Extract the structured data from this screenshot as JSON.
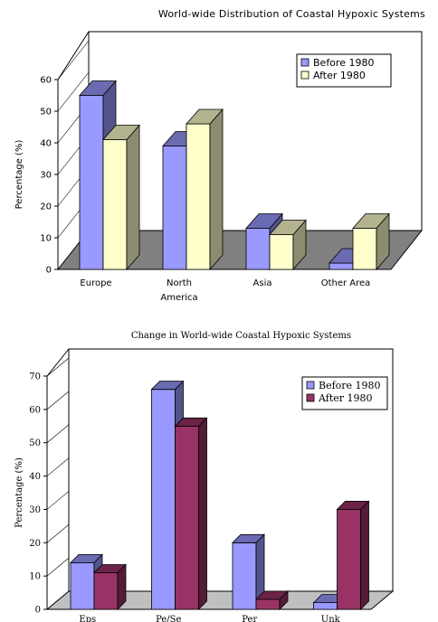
{
  "chart_data": [
    {
      "type": "bar",
      "title": "World-wide Distribution of Coastal Hypoxic Systems",
      "categories": [
        "Europe",
        "North America",
        "Asia",
        "Other Area"
      ],
      "series": [
        {
          "name": "Before 1980",
          "values": [
            55,
            39,
            13,
            2
          ],
          "color": "#9999ff"
        },
        {
          "name": "After 1980",
          "values": [
            41,
            46,
            11,
            13
          ],
          "color": "#ffffcc"
        }
      ],
      "xlabel": "",
      "ylabel": "Percentage (%)",
      "ylim": [
        0,
        60
      ],
      "yticks": [
        0,
        10,
        20,
        30,
        40,
        50,
        60
      ],
      "legend": "top-right",
      "floor_color": "#808080"
    },
    {
      "type": "bar",
      "title": "Change in World-wide Coastal Hypoxic Systems",
      "categories": [
        "Eps",
        "Pe/Se",
        "Per",
        "Unk"
      ],
      "series": [
        {
          "name": "Before 1980",
          "values": [
            14,
            66,
            20,
            2
          ],
          "color": "#9999ff"
        },
        {
          "name": "After 1980",
          "values": [
            11,
            55,
            3,
            30
          ],
          "color": "#993366"
        }
      ],
      "xlabel": "",
      "ylabel": "Percentage (%)",
      "ylim": [
        0,
        70
      ],
      "yticks": [
        0,
        10,
        20,
        30,
        40,
        50,
        60,
        70
      ],
      "legend": "top-right",
      "floor_color": "#c0c0c0"
    }
  ]
}
